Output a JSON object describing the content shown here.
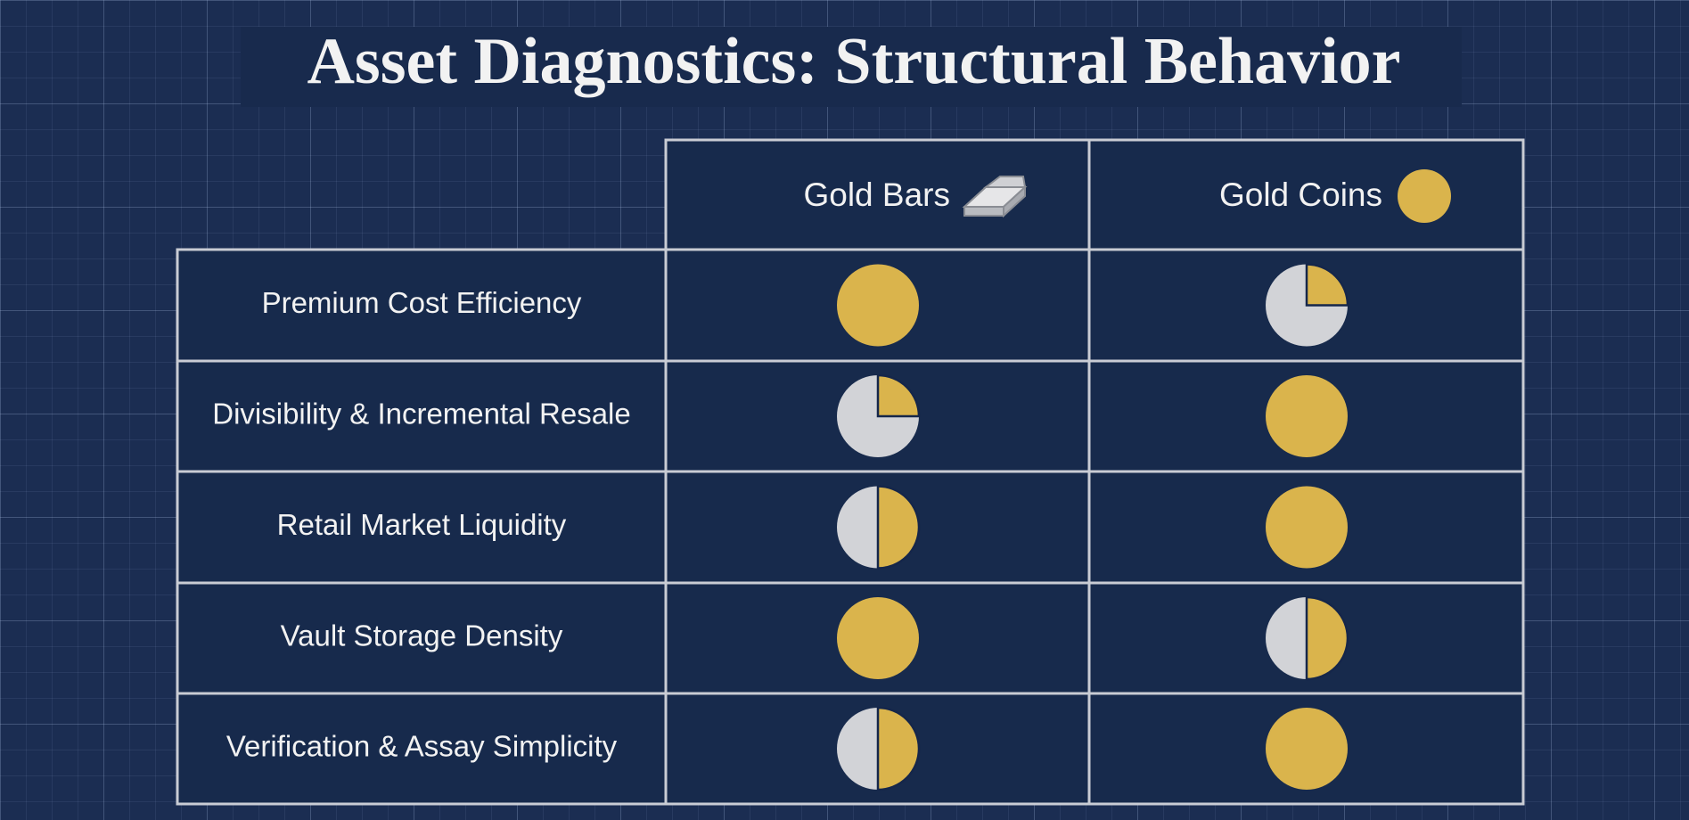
{
  "title": "Asset Diagnostics: Structural Behavior",
  "table": {
    "columns": [
      "Gold Bars",
      "Gold Coins"
    ],
    "rows": [
      {
        "label": "Premium Cost Efficiency",
        "scores": [
          1,
          0.25
        ]
      },
      {
        "label": "Divisibility & Incremental Resale",
        "scores": [
          0.25,
          1
        ]
      },
      {
        "label": "Retail Market Liquidity",
        "scores": [
          0.5,
          1
        ]
      },
      {
        "label": "Vault Storage Density",
        "scores": [
          1,
          0.5
        ]
      },
      {
        "label": "Verification & Assay Simplicity",
        "scores": [
          0.5,
          1
        ]
      }
    ]
  }
}
